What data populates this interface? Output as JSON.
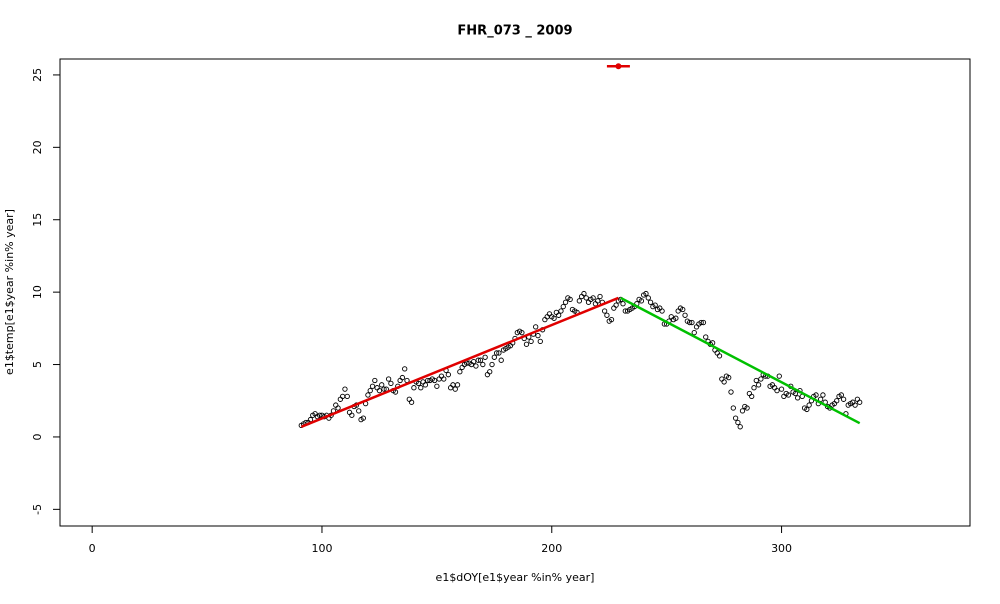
{
  "chart_data": {
    "type": "scatter",
    "title": "FHR_073 _ 2009",
    "x_label": "e1$dOY[e1$year %in% year]",
    "y_label": "e1$temp[e1$year %in% year]",
    "xlim": [
      -14,
      382
    ],
    "ylim": [
      -6.15,
      26.1
    ],
    "xticks": [
      0,
      100,
      200,
      300
    ],
    "yticks": [
      -5,
      0,
      5,
      10,
      15,
      20,
      25
    ],
    "series": [
      {
        "type": "scatter",
        "color": "#000000",
        "x": [
          91,
          92,
          93,
          94,
          95,
          96,
          97,
          98,
          99,
          100,
          101,
          102,
          103,
          104,
          105,
          106,
          107,
          108,
          109,
          110,
          111,
          112,
          113,
          114,
          115,
          116,
          117,
          118,
          119,
          120,
          121,
          122,
          123,
          124,
          125,
          126,
          127,
          128,
          129,
          130,
          131,
          132,
          133,
          134,
          135,
          136,
          137,
          138,
          139,
          140,
          141,
          142,
          143,
          144,
          145,
          146,
          147,
          148,
          149,
          150,
          151,
          152,
          153,
          154,
          155,
          156,
          157,
          158,
          159,
          160,
          161,
          162,
          163,
          164,
          165,
          166,
          167,
          168,
          169,
          170,
          171,
          172,
          173,
          174,
          175,
          176,
          177,
          178,
          179,
          180,
          181,
          182,
          183,
          184,
          185,
          186,
          187,
          188,
          189,
          190,
          191,
          192,
          193,
          194,
          195,
          196,
          197,
          198,
          199,
          200,
          201,
          202,
          203,
          204,
          205,
          206,
          207,
          208,
          209,
          210,
          211,
          212,
          213,
          214,
          215,
          216,
          217,
          218,
          219,
          220,
          221,
          222,
          223,
          224,
          225,
          226,
          227,
          228,
          229,
          230,
          231,
          232,
          233,
          234,
          235,
          236,
          237,
          238,
          239,
          240,
          241,
          242,
          243,
          244,
          245,
          246,
          247,
          248,
          249,
          250,
          251,
          252,
          253,
          254,
          255,
          256,
          257,
          258,
          259,
          260,
          261,
          262,
          263,
          264,
          265,
          266,
          267,
          268,
          269,
          270,
          271,
          272,
          273,
          274,
          275,
          276,
          277,
          278,
          279,
          280,
          281,
          282,
          283,
          284,
          285,
          286,
          287,
          288,
          289,
          290,
          291,
          292,
          293,
          294,
          295,
          296,
          297,
          298,
          299,
          300,
          301,
          302,
          303,
          304,
          305,
          306,
          307,
          308,
          309,
          310,
          311,
          312,
          313,
          314,
          315,
          316,
          317,
          318,
          319,
          320,
          321,
          322,
          323,
          324,
          325,
          326,
          327,
          328,
          329,
          330,
          331,
          332,
          333,
          334
        ],
        "values": [
          0.8,
          0.9,
          1.0,
          1.0,
          1.2,
          1.5,
          1.6,
          1.4,
          1.5,
          1.5,
          1.4,
          1.5,
          1.3,
          1.5,
          1.8,
          2.2,
          2.0,
          2.6,
          2.8,
          3.3,
          2.8,
          1.7,
          1.5,
          2.1,
          2.2,
          1.8,
          1.2,
          1.3,
          2.3,
          2.9,
          3.2,
          3.5,
          3.9,
          3.4,
          3.2,
          3.6,
          3.3,
          3.3,
          4.0,
          3.7,
          3.2,
          3.1,
          3.5,
          3.9,
          4.1,
          4.7,
          3.9,
          2.6,
          2.4,
          3.4,
          3.8,
          3.7,
          3.4,
          3.8,
          3.6,
          3.9,
          3.9,
          4.0,
          3.9,
          3.5,
          4.0,
          4.2,
          4.0,
          4.6,
          4.3,
          3.4,
          3.6,
          3.3,
          3.6,
          4.5,
          4.8,
          5.0,
          5.1,
          5.1,
          5.0,
          5.2,
          4.9,
          5.3,
          5.3,
          5.0,
          5.5,
          4.3,
          4.5,
          5.0,
          5.5,
          5.8,
          5.8,
          5.3,
          6.0,
          6.1,
          6.2,
          6.3,
          6.5,
          6.8,
          7.2,
          7.3,
          7.2,
          6.8,
          6.4,
          6.9,
          6.6,
          7.1,
          7.6,
          7.0,
          6.6,
          7.4,
          8.1,
          8.3,
          8.5,
          8.3,
          8.2,
          8.6,
          8.4,
          8.7,
          9.0,
          9.3,
          9.6,
          9.5,
          8.8,
          8.7,
          8.6,
          9.4,
          9.7,
          9.9,
          9.6,
          9.3,
          9.5,
          9.6,
          9.2,
          9.4,
          9.7,
          9.3,
          8.7,
          8.4,
          8.0,
          8.1,
          8.9,
          9.1,
          9.4,
          9.5,
          9.2,
          8.7,
          8.7,
          8.8,
          8.9,
          9.0,
          9.2,
          9.5,
          9.4,
          9.8,
          9.9,
          9.6,
          9.3,
          9.0,
          9.1,
          8.8,
          8.9,
          8.7,
          7.8,
          7.8,
          8.0,
          8.3,
          8.1,
          8.2,
          8.7,
          8.9,
          8.8,
          8.4,
          8.0,
          7.9,
          7.9,
          7.2,
          7.6,
          7.8,
          7.9,
          7.9,
          6.9,
          6.6,
          6.4,
          6.5,
          6.0,
          5.8,
          5.6,
          4.0,
          3.8,
          4.2,
          4.1,
          3.1,
          2.0,
          1.3,
          1.0,
          0.7,
          1.8,
          2.1,
          2.0,
          3.0,
          2.8,
          3.4,
          3.9,
          3.6,
          4.0,
          4.3,
          4.2,
          4.2,
          3.5,
          3.6,
          3.4,
          3.2,
          4.2,
          3.3,
          2.8,
          3.0,
          2.9,
          3.5,
          3.1,
          3.0,
          2.7,
          3.2,
          2.8,
          2.0,
          1.9,
          2.2,
          2.5,
          2.8,
          2.9,
          2.3,
          2.6,
          2.9,
          2.4,
          2.1,
          2.0,
          2.2,
          2.3,
          2.5,
          2.8,
          2.9,
          2.6,
          1.6,
          2.2,
          2.3,
          2.4,
          2.2,
          2.6,
          2.4
        ]
      },
      {
        "type": "line",
        "color": "#e00000",
        "x": [
          91,
          229
        ],
        "values": [
          0.7,
          9.6
        ]
      },
      {
        "type": "line",
        "color": "#00c000",
        "x": [
          230,
          334
        ],
        "values": [
          9.6,
          0.95
        ]
      },
      {
        "type": "line",
        "color": "#e00000",
        "x": [
          224,
          234
        ],
        "values": [
          25.6,
          25.6
        ]
      },
      {
        "type": "point",
        "color": "#e00000",
        "x": [
          229
        ],
        "values": [
          25.6
        ]
      }
    ]
  }
}
